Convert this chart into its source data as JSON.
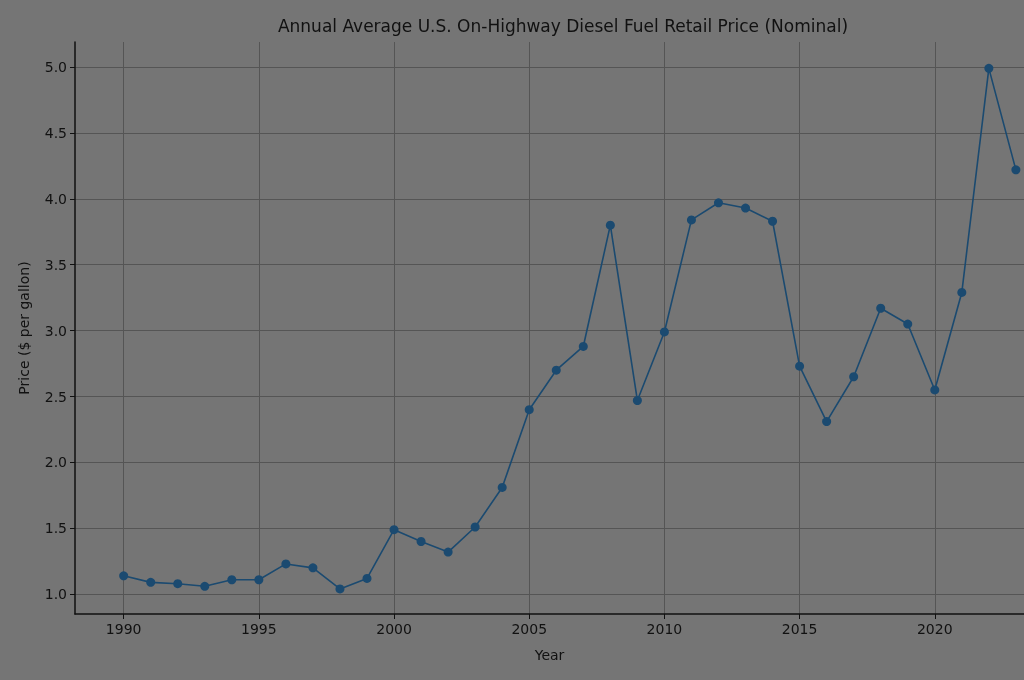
{
  "chart_data": {
    "type": "line",
    "title": "Annual Average U.S. On-Highway Diesel Fuel Retail Price (Nominal)",
    "xlabel": "Year",
    "ylabel": "Price ($ per gallon)",
    "x": [
      1990,
      1991,
      1992,
      1993,
      1994,
      1995,
      1996,
      1997,
      1998,
      1999,
      2000,
      2001,
      2002,
      2003,
      2004,
      2005,
      2006,
      2007,
      2008,
      2009,
      2010,
      2011,
      2012,
      2013,
      2014,
      2015,
      2016,
      2017,
      2018,
      2019,
      2020,
      2021,
      2022,
      2023
    ],
    "series": [
      {
        "color": "#1b4a70",
        "values": [
          1.14,
          1.09,
          1.08,
          1.06,
          1.11,
          1.11,
          1.23,
          1.2,
          1.04,
          1.12,
          1.49,
          1.4,
          1.32,
          1.51,
          1.81,
          2.4,
          2.7,
          2.88,
          3.8,
          2.47,
          2.99,
          3.84,
          3.97,
          3.93,
          3.83,
          2.73,
          2.31,
          2.65,
          3.17,
          3.05,
          2.55,
          3.29,
          4.99,
          4.22
        ]
      }
    ],
    "xlim": [
      1988.2,
      2023.3
    ],
    "xticks": [
      1990,
      1995,
      2000,
      2005,
      2010,
      2015,
      2020
    ],
    "ylim": [
      0.85,
      5.19
    ],
    "yticks": [
      {
        "value": 1,
        "label": "1.0"
      },
      1.5,
      {
        "value": 2,
        "label": "2.0"
      },
      2.5,
      {
        "value": 3,
        "label": "3.0"
      },
      3.5,
      {
        "value": 4,
        "label": "4.0"
      },
      4.5,
      {
        "value": 5,
        "label": "5.0"
      }
    ],
    "grid": true,
    "marker": "circle",
    "line_style": "solid"
  }
}
